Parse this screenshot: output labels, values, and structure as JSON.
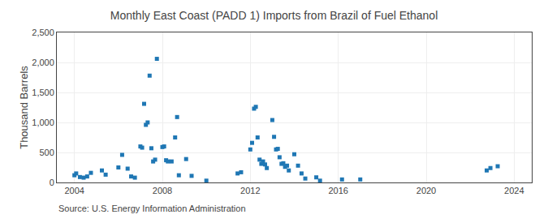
{
  "chart_data": {
    "type": "scatter",
    "title": "Monthly East Coast (PADD 1) Imports from Brazil of Fuel Ethanol",
    "ylabel": "Thousand Barrels",
    "annotations": [
      "Source: U.S. Energy Information Administration"
    ],
    "marker": "square",
    "grid": true,
    "xlim": [
      2003.2,
      2024.8
    ],
    "xticks": [
      2004,
      2008,
      2012,
      2016,
      2020,
      2024
    ],
    "ylim": [
      0,
      2500
    ],
    "yticks": [
      0,
      500,
      {
        "value": 1000,
        "label": "1,000"
      },
      {
        "value": 1500,
        "label": "1,500"
      },
      {
        "value": 2000,
        "label": "2,000"
      },
      {
        "value": 2500,
        "label": "2,500"
      }
    ],
    "x": [
      2004.0,
      2004.08,
      2004.25,
      2004.42,
      2004.58,
      2004.75,
      2005.25,
      2005.42,
      2006.0,
      2006.17,
      2006.42,
      2006.58,
      2006.75,
      2007.0,
      2007.08,
      2007.17,
      2007.25,
      2007.33,
      2007.42,
      2007.5,
      2007.58,
      2007.67,
      2007.75,
      2008.0,
      2008.08,
      2008.17,
      2008.25,
      2008.42,
      2008.58,
      2008.67,
      2008.75,
      2009.08,
      2009.33,
      2010.0,
      2011.42,
      2011.58,
      2012.0,
      2012.08,
      2012.17,
      2012.25,
      2012.33,
      2012.42,
      2012.5,
      2012.58,
      2012.67,
      2012.75,
      2013.0,
      2013.08,
      2013.17,
      2013.25,
      2013.33,
      2013.42,
      2013.5,
      2013.58,
      2013.67,
      2013.75,
      2014.0,
      2014.17,
      2014.33,
      2014.5,
      2015.0,
      2015.17,
      2016.17,
      2017.0,
      2022.75,
      2022.92,
      2023.25
    ],
    "values": [
      120,
      150,
      90,
      80,
      100,
      160,
      200,
      130,
      250,
      460,
      230,
      100,
      80,
      600,
      580,
      1310,
      960,
      1000,
      1780,
      570,
      350,
      380,
      2060,
      590,
      600,
      370,
      350,
      350,
      750,
      1090,
      120,
      390,
      110,
      30,
      150,
      170,
      550,
      660,
      1230,
      1260,
      750,
      380,
      310,
      350,
      300,
      240,
      1040,
      760,
      550,
      560,
      420,
      310,
      320,
      260,
      280,
      200,
      470,
      280,
      150,
      65,
      85,
      30,
      50,
      50,
      200,
      240,
      270
    ]
  }
}
